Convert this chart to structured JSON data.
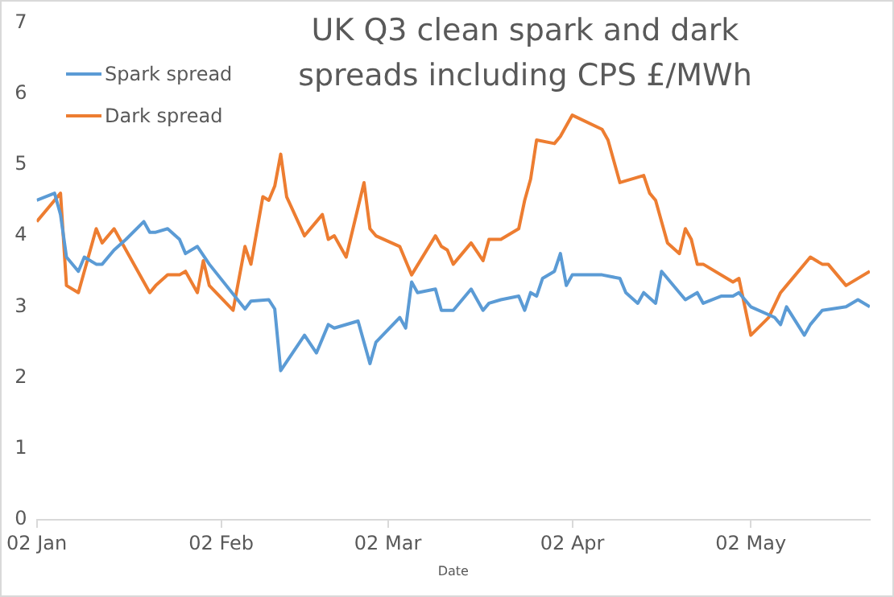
{
  "chart_data": {
    "type": "line",
    "title": "UK Q3 clean spark and dark spreads including CPS £/MWh",
    "xlabel": "Date",
    "xlim": [
      "--01-02",
      "--05-22"
    ],
    "xticks": [
      {
        "value": "--01-02",
        "label": "02 Jan"
      },
      {
        "value": "--02-02",
        "label": "02 Feb"
      },
      {
        "value": "--03-02",
        "label": "02 Mar"
      },
      {
        "value": "--04-02",
        "label": "02 Apr"
      },
      {
        "value": "--05-02",
        "label": "02 May"
      }
    ],
    "ylim": [
      0,
      7
    ],
    "yticks": [
      0,
      1,
      2,
      3,
      4,
      5,
      6,
      7
    ],
    "grid": false,
    "legend": "top left",
    "marker": "none",
    "line_style": "solid",
    "series": [
      {
        "name": "Spark spread",
        "color": "#5b9bd5",
        "x": [
          "--01-02",
          "--01-05",
          "--01-06",
          "--01-07",
          "--01-09",
          "--01-10",
          "--01-12",
          "--01-13",
          "--01-15",
          "--01-17",
          "--01-20",
          "--01-21",
          "--01-22",
          "--01-24",
          "--01-26",
          "--01-27",
          "--01-29",
          "--01-31",
          "--02-06",
          "--02-07",
          "--02-10",
          "--02-11",
          "--02-12",
          "--02-16",
          "--02-18",
          "--02-20",
          "--02-21",
          "--02-25",
          "--02-27",
          "--02-28",
          "--03-04",
          "--03-05",
          "--03-06",
          "--03-07",
          "--03-10",
          "--03-11",
          "--03-13",
          "--03-16",
          "--03-18",
          "--03-19",
          "--03-21",
          "--03-24",
          "--03-25",
          "--03-26",
          "--03-27",
          "--03-28",
          "--03-30",
          "--03-31",
          "--04-01",
          "--04-02",
          "--04-07",
          "--04-10",
          "--04-11",
          "--04-13",
          "--04-14",
          "--04-16",
          "--04-17",
          "--04-20",
          "--04-21",
          "--04-23",
          "--04-24",
          "--04-27",
          "--04-29",
          "--04-30",
          "--05-02",
          "--05-06",
          "--05-07",
          "--05-08",
          "--05-11",
          "--05-12",
          "--05-14",
          "--05-18",
          "--05-20",
          "--05-22"
        ],
        "values": [
          4.5,
          4.6,
          4.3,
          3.7,
          3.5,
          3.7,
          3.6,
          3.6,
          3.8,
          3.95,
          4.2,
          4.05,
          4.05,
          4.1,
          3.95,
          3.75,
          3.85,
          3.6,
          2.97,
          3.08,
          3.1,
          2.97,
          2.1,
          2.6,
          2.35,
          2.75,
          2.7,
          2.8,
          2.2,
          2.5,
          2.85,
          2.7,
          3.35,
          3.2,
          3.25,
          2.95,
          2.95,
          3.25,
          2.95,
          3.05,
          3.1,
          3.15,
          2.95,
          3.2,
          3.15,
          3.4,
          3.5,
          3.75,
          3.3,
          3.45,
          3.45,
          3.4,
          3.2,
          3.05,
          3.2,
          3.05,
          3.5,
          3.2,
          3.1,
          3.2,
          3.05,
          3.15,
          3.15,
          3.2,
          3.0,
          2.85,
          2.75,
          3.0,
          2.6,
          2.75,
          2.95,
          3.0,
          3.1,
          3.0
        ]
      },
      {
        "name": "Dark spread",
        "color": "#ed7d31",
        "x": [
          "--01-02",
          "--01-06",
          "--01-07",
          "--01-09",
          "--01-12",
          "--01-13",
          "--01-15",
          "--01-21",
          "--01-22",
          "--01-24",
          "--01-26",
          "--01-27",
          "--01-29",
          "--01-30",
          "--01-31",
          "--02-04",
          "--02-06",
          "--02-07",
          "--02-09",
          "--02-10",
          "--02-11",
          "--02-12",
          "--02-13",
          "--02-16",
          "--02-19",
          "--02-20",
          "--02-21",
          "--02-23",
          "--02-26",
          "--02-27",
          "--02-28",
          "--03-04",
          "--03-06",
          "--03-10",
          "--03-11",
          "--03-12",
          "--03-13",
          "--03-16",
          "--03-18",
          "--03-19",
          "--03-21",
          "--03-24",
          "--03-25",
          "--03-26",
          "--03-27",
          "--03-30",
          "--03-31",
          "--04-02",
          "--04-07",
          "--04-08",
          "--04-09",
          "--04-10",
          "--04-14",
          "--04-15",
          "--04-16",
          "--04-17",
          "--04-18",
          "--04-20",
          "--04-21",
          "--04-22",
          "--04-23",
          "--04-24",
          "--04-29",
          "--04-30",
          "--05-02",
          "--05-05",
          "--05-07",
          "--05-08",
          "--05-12",
          "--05-14",
          "--05-15",
          "--05-18",
          "--05-22"
        ],
        "values": [
          4.2,
          4.6,
          3.3,
          3.2,
          4.1,
          3.9,
          4.1,
          3.2,
          3.3,
          3.45,
          3.45,
          3.5,
          3.2,
          3.65,
          3.3,
          2.95,
          3.85,
          3.6,
          4.55,
          4.5,
          4.7,
          5.15,
          4.55,
          4.0,
          4.3,
          3.95,
          4.0,
          3.7,
          4.75,
          4.1,
          4.0,
          3.85,
          3.45,
          4.0,
          3.85,
          3.8,
          3.6,
          3.9,
          3.65,
          3.95,
          3.95,
          4.1,
          4.5,
          4.8,
          5.35,
          5.3,
          5.4,
          5.7,
          5.5,
          5.35,
          5.05,
          4.75,
          4.85,
          4.6,
          4.5,
          4.2,
          3.9,
          3.75,
          4.1,
          3.95,
          3.6,
          3.6,
          3.35,
          3.4,
          2.6,
          2.85,
          3.2,
          3.3,
          3.7,
          3.6,
          3.6,
          3.3,
          3.5
        ]
      }
    ]
  }
}
